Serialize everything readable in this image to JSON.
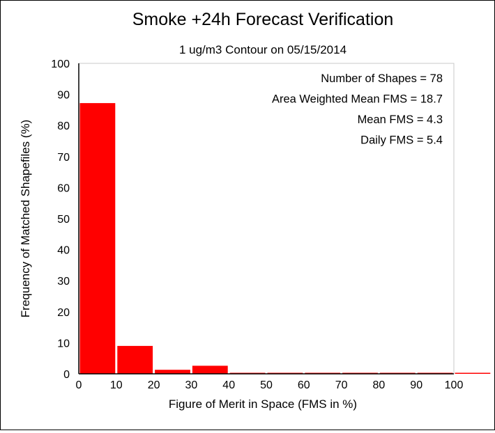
{
  "chart_data": {
    "type": "bar",
    "title": "Smoke +24h Forecast Verification",
    "subtitle": "1 ug/m3 Contour on 05/15/2014",
    "xlabel": "Figure of Merit in Space (FMS in %)",
    "ylabel": "Frequency of Matched Shapefiles (%)",
    "xlim": [
      0,
      110
    ],
    "ylim": [
      0,
      100
    ],
    "xticks": [
      0,
      10,
      20,
      30,
      40,
      50,
      60,
      70,
      80,
      90,
      100
    ],
    "yticks": [
      0,
      10,
      20,
      30,
      40,
      50,
      60,
      70,
      80,
      90,
      100
    ],
    "bins": [
      {
        "start": 0,
        "end": 10,
        "value": 87.2
      },
      {
        "start": 10,
        "end": 20,
        "value": 9.0
      },
      {
        "start": 20,
        "end": 30,
        "value": 1.3
      },
      {
        "start": 30,
        "end": 40,
        "value": 2.6
      },
      {
        "start": 40,
        "end": 50,
        "value": 0
      },
      {
        "start": 50,
        "end": 60,
        "value": 0
      },
      {
        "start": 60,
        "end": 70,
        "value": 0
      },
      {
        "start": 70,
        "end": 80,
        "value": 0
      },
      {
        "start": 80,
        "end": 90,
        "value": 0
      },
      {
        "start": 90,
        "end": 100,
        "value": 0
      },
      {
        "start": 100,
        "end": 110,
        "value": 0
      }
    ],
    "bar_color": "#ff0000",
    "annotations": [
      "Number of Shapes = 78",
      "Area Weighted Mean FMS = 18.7",
      "Mean FMS = 4.3",
      "Daily FMS = 5.4"
    ],
    "grid": false
  }
}
